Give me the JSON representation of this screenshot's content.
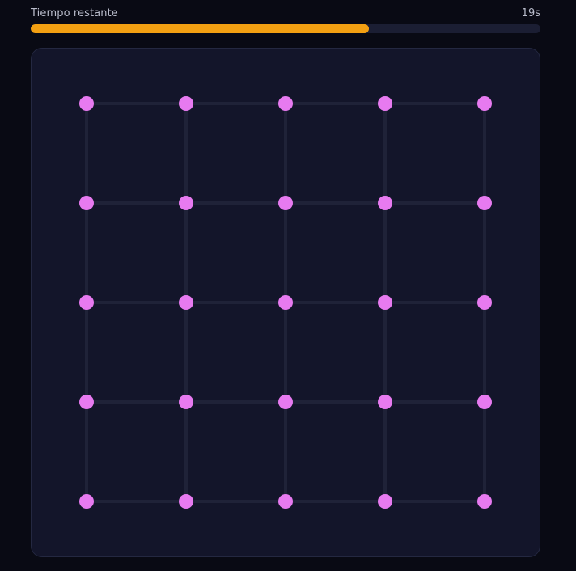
{
  "timer": {
    "label": "Tiempo restante",
    "value": "19s",
    "progress_fraction": 0.664
  },
  "board": {
    "rows": 5,
    "cols": 5,
    "colors": {
      "dot": "#e77af0",
      "line": "#1f2238",
      "background": "#13152a"
    }
  },
  "colors": {
    "page_background": "#090a14",
    "progress_fill": "#f3a012",
    "progress_track": "#1b1e33"
  }
}
